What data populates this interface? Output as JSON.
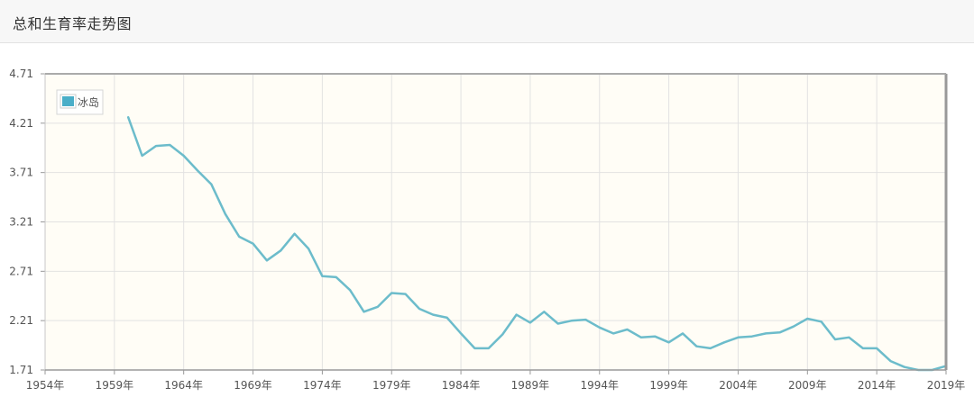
{
  "header": {
    "title": "总和生育率走势图"
  },
  "colors": {
    "series": "#6cbccb",
    "legend_swatch": "#4aaec8",
    "plot_bg": "#fffdf6",
    "grid": "#e2e2e2"
  },
  "chart_data": {
    "type": "line",
    "title": "",
    "xlabel": "",
    "ylabel": "",
    "xlim": [
      1954,
      2019
    ],
    "ylim": [
      1.71,
      4.71
    ],
    "x_ticks": [
      1954,
      1959,
      1964,
      1969,
      1974,
      1979,
      1984,
      1989,
      1994,
      1999,
      2004,
      2009,
      2014,
      2019
    ],
    "x_tick_labels": [
      "1954年",
      "1959年",
      "1964年",
      "1969年",
      "1974年",
      "1979年",
      "1984年",
      "1989年",
      "1994年",
      "1999年",
      "2004年",
      "2009年",
      "2014年",
      "2019年"
    ],
    "y_ticks": [
      1.71,
      2.21,
      2.71,
      3.21,
      3.71,
      4.21,
      4.71
    ],
    "y_tick_labels": [
      "1.71",
      "2.21",
      "2.71",
      "3.21",
      "3.71",
      "4.21",
      "4.71"
    ],
    "grid": true,
    "legend_position": "top-left",
    "series": [
      {
        "name": "冰岛",
        "x": [
          1960,
          1961,
          1962,
          1963,
          1964,
          1965,
          1966,
          1967,
          1968,
          1969,
          1970,
          1971,
          1972,
          1973,
          1974,
          1975,
          1976,
          1977,
          1978,
          1979,
          1980,
          1981,
          1982,
          1983,
          1984,
          1985,
          1986,
          1987,
          1988,
          1989,
          1990,
          1991,
          1992,
          1993,
          1994,
          1995,
          1996,
          1997,
          1998,
          1999,
          2000,
          2001,
          2002,
          2003,
          2004,
          2005,
          2006,
          2007,
          2008,
          2009,
          2010,
          2011,
          2012,
          2013,
          2014,
          2015,
          2016,
          2017,
          2018,
          2019
        ],
        "values": [
          4.27,
          3.88,
          3.98,
          3.99,
          3.88,
          3.73,
          3.59,
          3.29,
          3.06,
          2.99,
          2.82,
          2.92,
          3.09,
          2.94,
          2.66,
          2.65,
          2.52,
          2.3,
          2.35,
          2.49,
          2.48,
          2.33,
          2.27,
          2.24,
          2.08,
          1.93,
          1.93,
          2.07,
          2.27,
          2.19,
          2.3,
          2.18,
          2.21,
          2.22,
          2.14,
          2.08,
          2.12,
          2.04,
          2.05,
          1.99,
          2.08,
          1.95,
          1.93,
          1.99,
          2.04,
          2.05,
          2.08,
          2.09,
          2.15,
          2.23,
          2.2,
          2.02,
          2.04,
          1.93,
          1.93,
          1.8,
          1.74,
          1.71,
          1.71,
          1.75
        ]
      }
    ]
  }
}
